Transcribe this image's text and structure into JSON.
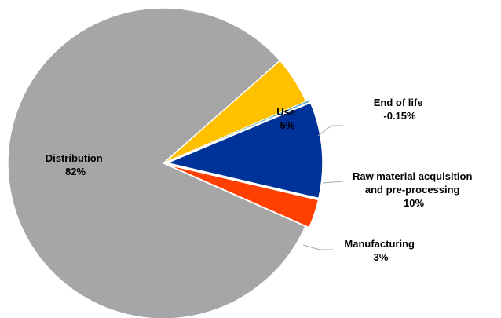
{
  "chart_data": {
    "type": "pie",
    "title": "",
    "slices": [
      {
        "label": "Distribution",
        "value_label": "82%",
        "value": 82,
        "color": "#a6a6a6"
      },
      {
        "label": "Use",
        "value_label": "5%",
        "value": 5,
        "color": "#ffc000"
      },
      {
        "label": "End of life",
        "value_label": "-0.15%",
        "value": -0.15,
        "color": "#4bacc6"
      },
      {
        "label": "Raw material acquisition and pre-processing",
        "value_label": "10%",
        "value": 10,
        "color": "#003399"
      },
      {
        "label": "Manufacturing",
        "value_label": "3%",
        "value": 3,
        "color": "#ff4000"
      }
    ],
    "exploded_slices": [
      "Raw material acquisition and pre-processing",
      "Manufacturing",
      "End of life"
    ],
    "legend": "none",
    "label_lines": true
  }
}
